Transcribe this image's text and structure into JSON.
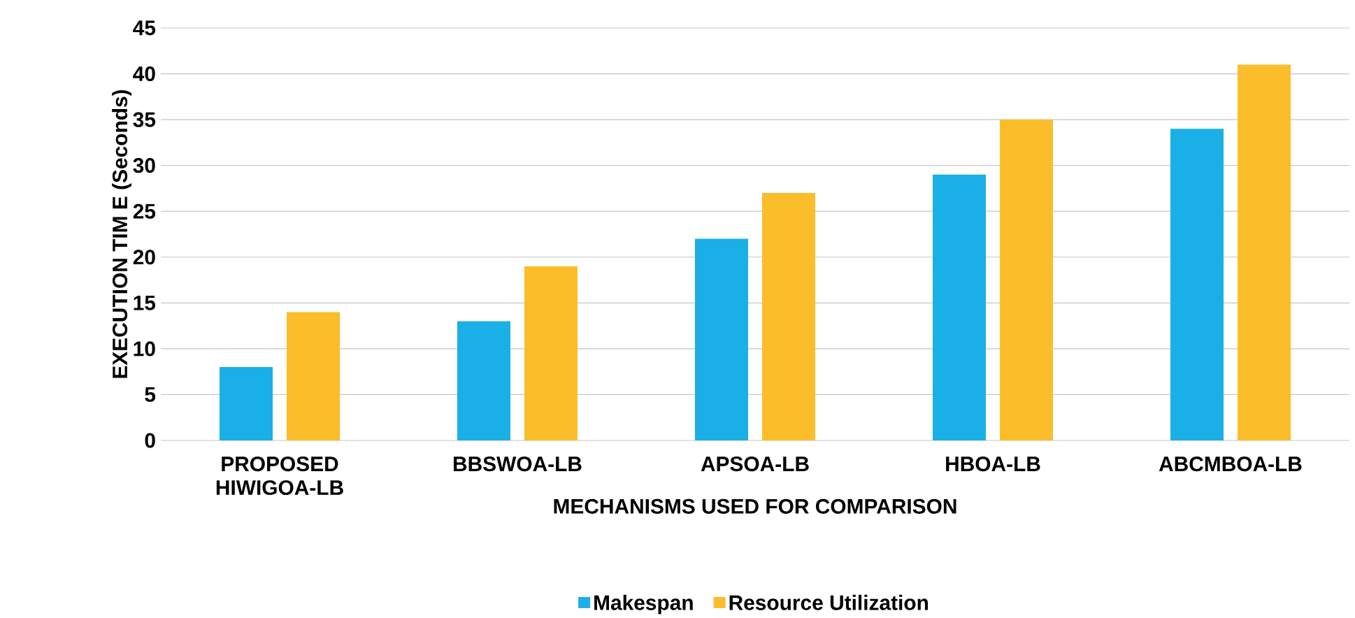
{
  "chart_data": {
    "type": "bar",
    "xlabel": "MECHANISMS USED FOR COMPARISON",
    "ylabel": "EXECUTION TIM E (Seconds)",
    "categories": [
      "PROPOSED HIWIGOA-LB",
      "BBSWOA-LB",
      "APSOA-LB",
      "HBOA-LB",
      "ABCMBOA-LB"
    ],
    "series": [
      {
        "name": "Makespan",
        "color": "#1aafe6",
        "values": [
          8,
          13,
          22,
          29,
          34
        ]
      },
      {
        "name": "Resource Utilization",
        "color": "#fbbd2a",
        "values": [
          14,
          19,
          27,
          35,
          41
        ]
      }
    ],
    "ylim": [
      0,
      45
    ],
    "yticks": [
      0,
      5,
      10,
      15,
      20,
      25,
      30,
      35,
      40,
      45
    ],
    "grid": "y",
    "legend": "bottom"
  }
}
